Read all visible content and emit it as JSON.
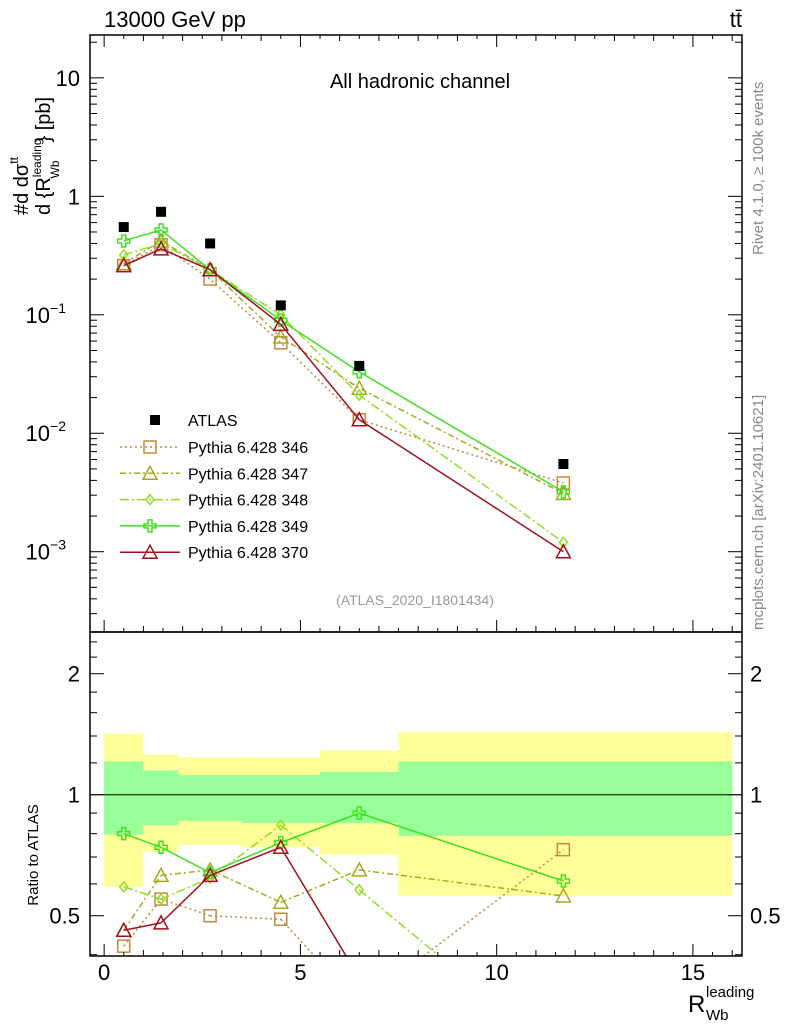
{
  "header": {
    "left": "13000 GeV pp",
    "right": "tt̄"
  },
  "side": {
    "rivet": "Rivet 4.1.0, ≥ 100k events",
    "mcplots": "mcplots.cern.ch [arXiv:2401.10621]"
  },
  "chart_data": {
    "type": "line",
    "title": "All hadronic channel",
    "analysis": "(ATLAS_2020_I1801434)",
    "ylabel": "#d dσ^{tt} / d {R_Wb^leading} [pb]",
    "ylabel_parts": {
      "num": "#d dσ",
      "num_sup": "tt",
      "den": "d {R",
      "den_sup": "leading",
      "den_sub": "Wb",
      "unit": "} [pb]"
    },
    "xlabel": {
      "main": "R",
      "sup": "leading",
      "sub": "Wb"
    },
    "ratio_ylabel": "Ratio to ATLAS",
    "xlim": [
      -0.36,
      16.25
    ],
    "ylim": [
      0.00021,
      23
    ],
    "ratio_ylim": [
      0.397,
      2.54
    ],
    "x_ticks": [
      "0",
      "5",
      "10",
      "15"
    ],
    "y_ticks": [
      {
        "v": 10,
        "label": "10"
      },
      {
        "v": 1,
        "label": "1"
      },
      {
        "v": 0.1,
        "label": "10",
        "exp": "−1"
      },
      {
        "v": 0.01,
        "label": "10",
        "exp": "−2"
      },
      {
        "v": 0.001,
        "label": "10",
        "exp": "−3"
      }
    ],
    "ratio_ticks": [
      {
        "v": 2,
        "label": "2"
      },
      {
        "v": 1,
        "label": "1"
      },
      {
        "v": 0.5,
        "label": "0.5"
      }
    ],
    "x": [
      0.5,
      1.45,
      2.7,
      4.5,
      6.5,
      11.7
    ],
    "bins": [
      [
        0,
        1
      ],
      [
        1,
        1.9
      ],
      [
        1.9,
        3.5
      ],
      [
        3.5,
        5.5
      ],
      [
        5.5,
        7.5
      ],
      [
        7.5,
        16
      ]
    ],
    "band_yellow": [
      [
        0.59,
        1.42
      ],
      [
        0.72,
        1.26
      ],
      [
        0.75,
        1.24
      ],
      [
        0.74,
        1.24
      ],
      [
        0.71,
        1.29
      ],
      [
        0.56,
        1.43
      ]
    ],
    "band_green": [
      [
        0.795,
        1.21
      ],
      [
        0.84,
        1.15
      ],
      [
        0.86,
        1.12
      ],
      [
        0.85,
        1.12
      ],
      [
        0.85,
        1.14
      ],
      [
        0.79,
        1.21
      ]
    ],
    "data": {
      "name": "ATLAS",
      "values": [
        0.55,
        0.74,
        0.4,
        0.12,
        0.037,
        0.0055
      ]
    },
    "series": [
      {
        "name": "Pythia 6.428 346",
        "color": "#c08a40",
        "marker": "square",
        "dash": "2,3",
        "values": [
          0.26,
          0.39,
          0.2,
          0.058,
          0.013,
          0.0038
        ],
        "ratio": [
          0.42,
          0.55,
          0.5,
          0.49,
          0.3,
          0.73
        ]
      },
      {
        "name": "Pythia 6.428 347",
        "color": "#a8a820",
        "marker": "triangle",
        "dash": "6,3,2,3",
        "values": [
          0.27,
          0.42,
          0.24,
          0.065,
          0.024,
          0.0031
        ],
        "ratio": [
          0.46,
          0.63,
          0.65,
          0.54,
          0.65,
          0.56
        ]
      },
      {
        "name": "Pythia 6.428 348",
        "color": "#90e020",
        "marker": "diamond",
        "dash": "9,3,2,3",
        "values": [
          0.32,
          0.4,
          0.24,
          0.1,
          0.021,
          0.0012
        ],
        "ratio": [
          0.59,
          0.55,
          0.62,
          0.84,
          0.58,
          0.22
        ]
      },
      {
        "name": "Pythia 6.428 349",
        "color": "#40e020",
        "marker": "cross",
        "dash": "",
        "values": [
          0.42,
          0.52,
          0.24,
          0.09,
          0.033,
          0.0032
        ],
        "ratio": [
          0.8,
          0.74,
          0.64,
          0.76,
          0.9,
          0.61
        ]
      },
      {
        "name": "Pythia 6.428 370",
        "color": "#a01020",
        "marker": "triangle",
        "dash": "",
        "values": [
          0.26,
          0.36,
          0.24,
          0.083,
          0.013,
          0.001
        ],
        "ratio": [
          0.46,
          0.48,
          0.63,
          0.74,
          0.35,
          0.18
        ]
      }
    ]
  }
}
